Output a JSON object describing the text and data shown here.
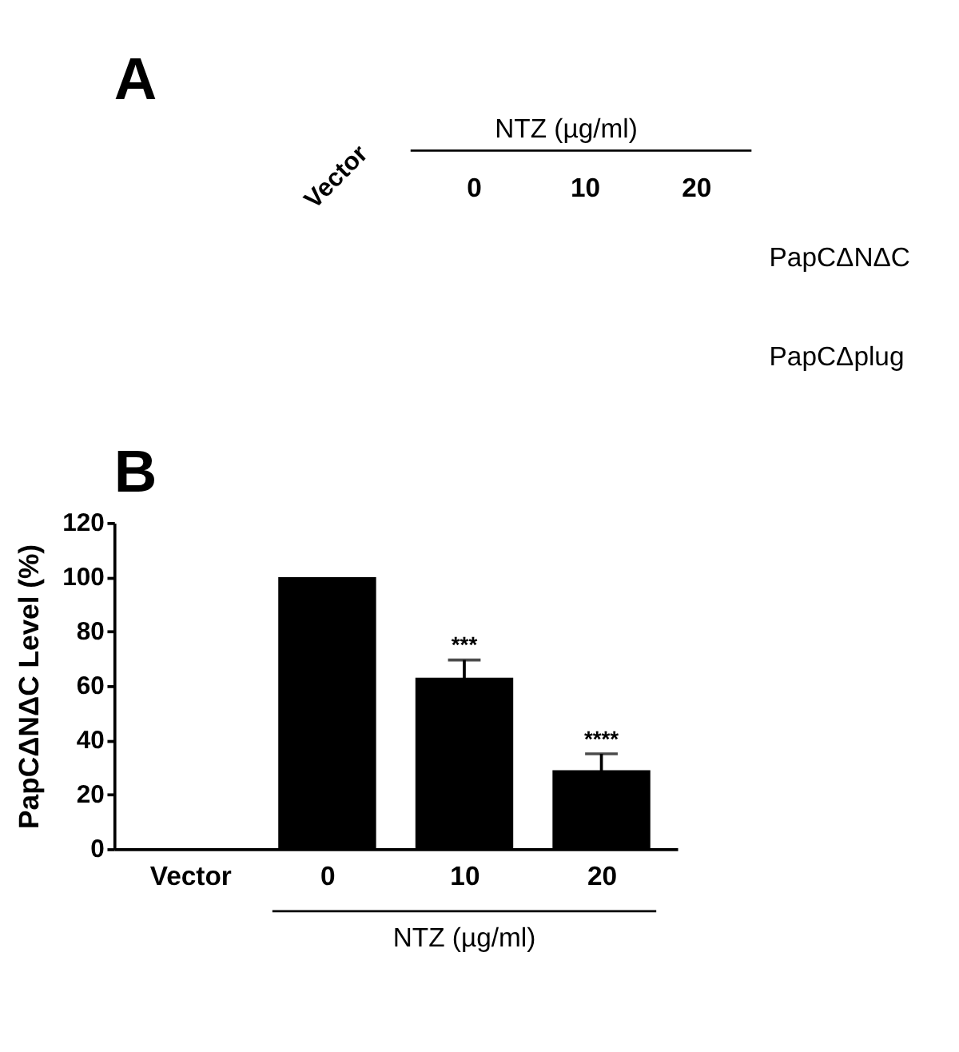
{
  "chart_data": [
    {
      "type": "other",
      "title": "A",
      "annotations": [
        "Vector",
        "NTZ (µg/ml)",
        "0",
        "10",
        "20",
        "PapCΔNΔC",
        "PapCΔplug"
      ]
    },
    {
      "type": "bar",
      "title": "B",
      "categories": [
        "Vector",
        "0",
        "10",
        "20"
      ],
      "values": [
        0,
        100,
        63,
        29
      ],
      "errors": [
        null,
        null,
        6.5,
        6
      ],
      "color": "#000000",
      "ylabel": "PapCΔNΔC Level (%)",
      "xlabel": "NTZ (µg/ml)",
      "ylim": [
        0,
        120
      ],
      "yticks": [
        0,
        20,
        40,
        60,
        80,
        100,
        120
      ],
      "grid": false,
      "annotations": [
        {
          "text": "***",
          "x": "10",
          "y": 69.5
        },
        {
          "text": "****",
          "x": "20",
          "y": 35
        }
      ]
    }
  ]
}
